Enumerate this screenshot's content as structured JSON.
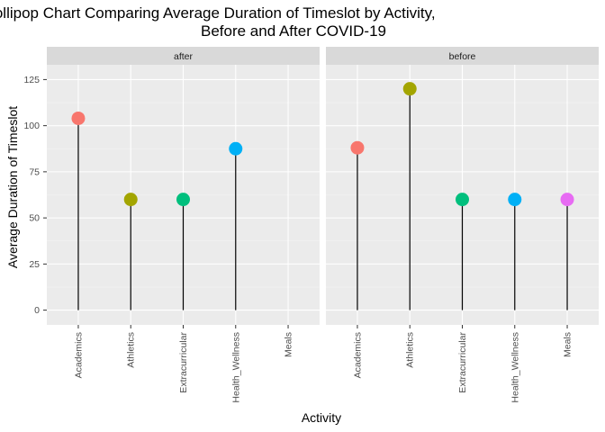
{
  "chart_data": {
    "type": "lollipop",
    "title_lines": [
      "Lollipop Chart Comparing Average Duration of Timeslot by Activity,",
      "Before and After COVID-19"
    ],
    "xlabel": "Activity",
    "ylabel": "Average Duration of Timeslot",
    "ylim": [
      -8,
      133
    ],
    "yticks": [
      0,
      25,
      50,
      75,
      100,
      125
    ],
    "categories": [
      "Academics",
      "Athletics",
      "Extracurricular",
      "Health_Wellness",
      "Meals"
    ],
    "category_colors": {
      "Academics": "#F8766D",
      "Athletics": "#A3A500",
      "Extracurricular": "#00BF7D",
      "Health_Wellness": "#00B0F6",
      "Meals": "#E76BF3"
    },
    "grid": true,
    "legend": "none",
    "panels": [
      {
        "label": "after",
        "values": [
          104,
          60,
          60,
          87.5,
          null
        ]
      },
      {
        "label": "before",
        "values": [
          88,
          120,
          60,
          60,
          60
        ]
      }
    ]
  }
}
